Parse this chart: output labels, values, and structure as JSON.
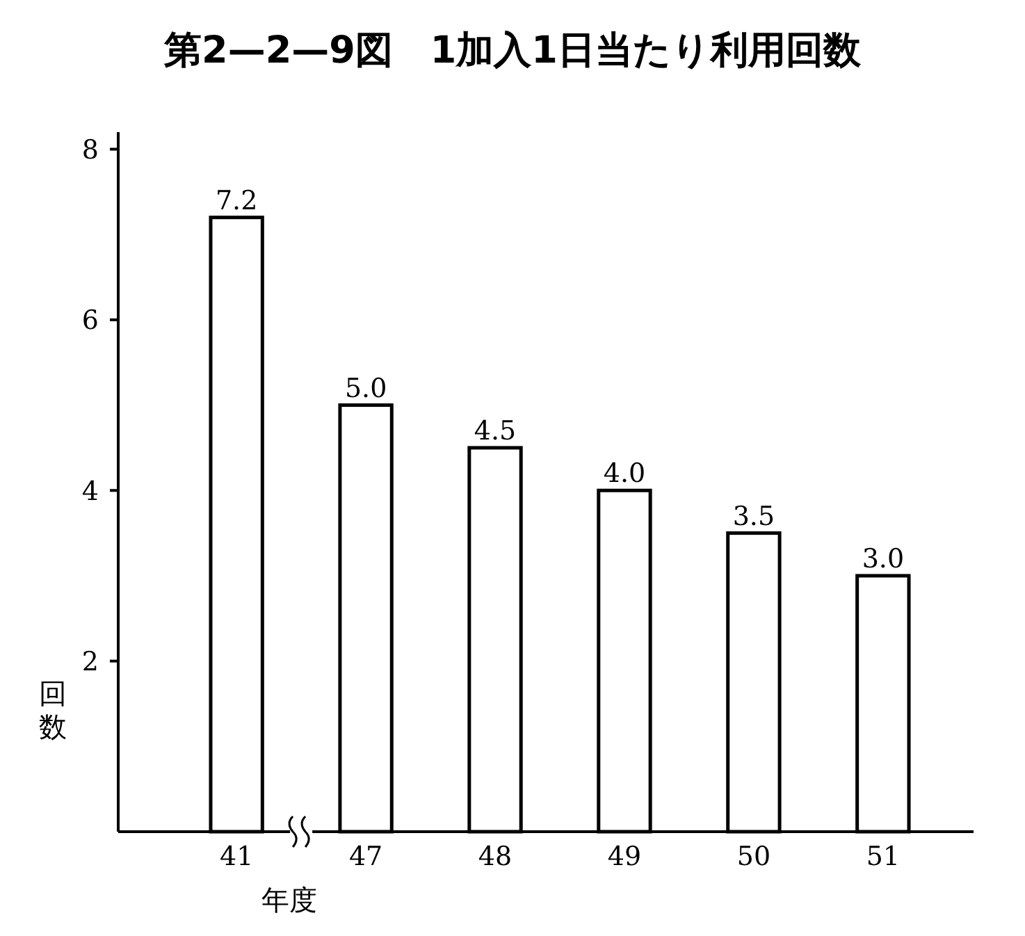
{
  "chart_data": {
    "type": "bar",
    "title": "第2—2—9図　1加入1日当たり利用回数",
    "xlabel": "年度",
    "ylabel": "回数",
    "categories": [
      "41",
      "47",
      "48",
      "49",
      "50",
      "51"
    ],
    "values": [
      7.2,
      5.0,
      4.5,
      4.0,
      3.5,
      3.0
    ],
    "value_labels": [
      "7.2",
      "5.0",
      "4.5",
      "4.0",
      "3.5",
      "3.0"
    ],
    "color": "#ffffff",
    "ylim": [
      0,
      8.2
    ],
    "yticks": [
      2,
      4,
      6,
      8
    ],
    "grid": false
  }
}
